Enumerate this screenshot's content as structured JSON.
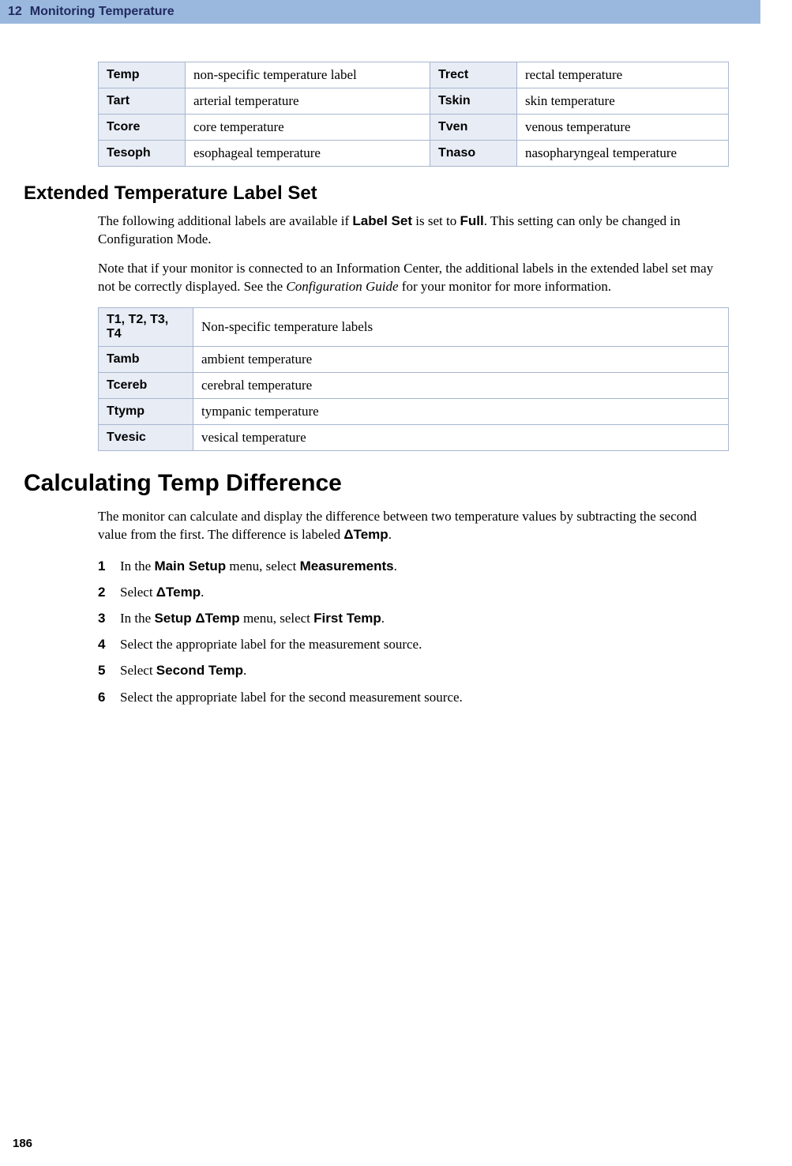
{
  "header": {
    "chapter_num": "12",
    "chapter_title": "Monitoring Temperature"
  },
  "table1": {
    "rows": [
      {
        "l1": "Temp",
        "d1": "non-specific temperature label",
        "l2": "Trect",
        "d2": "rectal temperature"
      },
      {
        "l1": "Tart",
        "d1": "arterial temperature",
        "l2": "Tskin",
        "d2": "skin temperature"
      },
      {
        "l1": "Tcore",
        "d1": "core temperature",
        "l2": "Tven",
        "d2": "venous temperature"
      },
      {
        "l1": "Tesoph",
        "d1": "esophageal temperature",
        "l2": "Tnaso",
        "d2": "nasopharyngeal temperature"
      }
    ]
  },
  "section_ext": {
    "title": "Extended Temperature Label Set",
    "p1a": "The following additional labels are available if ",
    "p1b": "Label Set",
    "p1c": " is set to ",
    "p1d": "Full",
    "p1e": ". This setting can only be changed in Configuration Mode.",
    "p2a": "Note that if your monitor is connected to an Information Center, the additional labels in the extended label set may not be correctly displayed. See the ",
    "p2b": "Configuration Guide",
    "p2c": " for your monitor for more information."
  },
  "table2": {
    "rows": [
      {
        "l": "T1, T2, T3, T4",
        "d": "Non-specific temperature labels"
      },
      {
        "l": "Tamb",
        "d": "ambient temperature"
      },
      {
        "l": "Tcereb",
        "d": "cerebral temperature"
      },
      {
        "l": "Ttymp",
        "d": "tympanic temperature"
      },
      {
        "l": "Tvesic",
        "d": "vesical temperature"
      }
    ]
  },
  "section_calc": {
    "title": "Calculating Temp Difference",
    "p1a": "The monitor can calculate and display the difference between two temperature values by subtracting the second value from the first. The difference is labeled ",
    "p1b": "ΔTemp",
    "p1c": ".",
    "steps": {
      "s1a": "In the ",
      "s1b": "Main Setup",
      "s1c": " menu, select ",
      "s1d": "Measurements",
      "s1e": ".",
      "s2a": "Select ",
      "s2b": "ΔTemp",
      "s2c": ".",
      "s3a": "In the ",
      "s3b": "Setup ΔTemp",
      "s3c": " menu, select ",
      "s3d": "First Temp",
      "s3e": ".",
      "s4": "Select the appropriate label for the measurement source.",
      "s5a": "Select ",
      "s5b": "Second Temp",
      "s5c": ".",
      "s6": "Select the appropriate label for the second measurement source."
    }
  },
  "page_number": "186"
}
